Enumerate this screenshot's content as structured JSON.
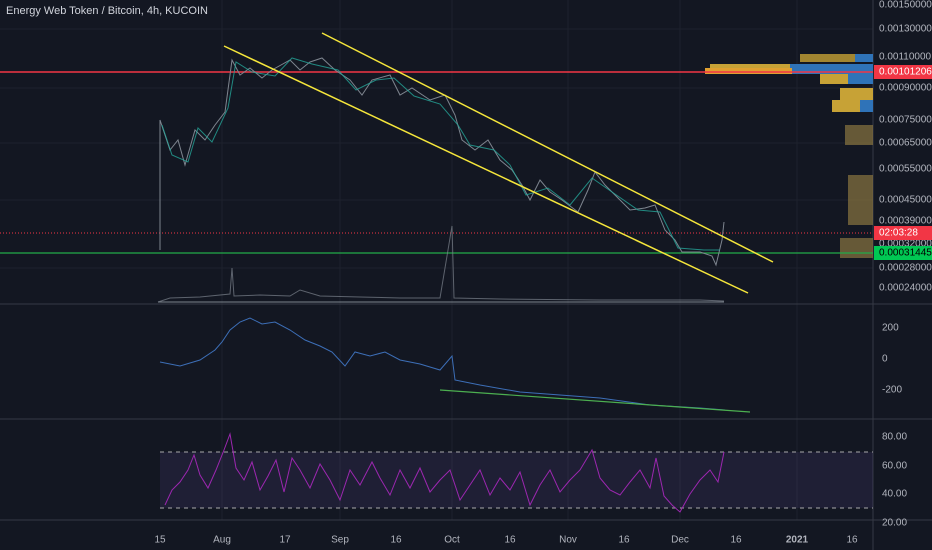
{
  "header": {
    "title": "Energy Web Token / Bitcoin, 4h, KUCOIN"
  },
  "price_axis": [
    "0.00150000",
    "0.00130000",
    "0.00110000",
    "0.00090000",
    "0.00075000",
    "0.00065000",
    "0.00055000",
    "0.00045000",
    "0.00039000",
    "0.00032000",
    "0.00028000",
    "0.00024000"
  ],
  "price_tags": {
    "last_high": "0.00101206",
    "countdown": "02:03:28",
    "current": "0.00031445"
  },
  "indicator_axis": [
    "200",
    "0",
    "-200"
  ],
  "rsi_axis": [
    "80.00",
    "60.00",
    "40.00",
    "20.00"
  ],
  "time_axis": [
    "15",
    "Aug",
    "17",
    "Sep",
    "16",
    "Oct",
    "16",
    "Nov",
    "16",
    "Dec",
    "16",
    "2021",
    "16"
  ]
}
